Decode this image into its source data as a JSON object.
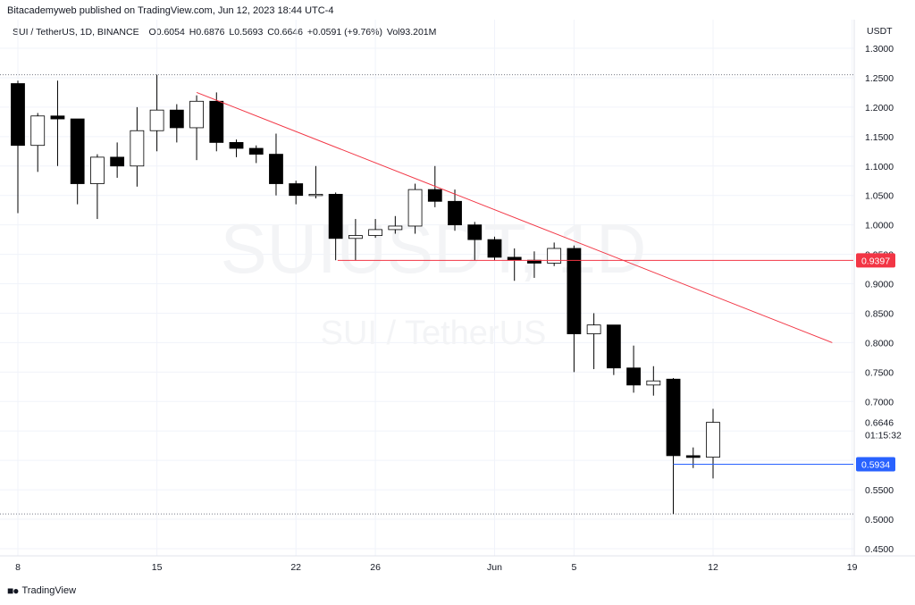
{
  "header": {
    "publish_line": "Bitacademyweb published on TradingView.com, Jun 12, 2023 18:44 UTC-4"
  },
  "legend": {
    "symbol_line": "SUI / TetherUS, 1D, BINANCE",
    "open_label": "O",
    "open": "0.6054",
    "high_label": "H",
    "high": "0.6876",
    "low_label": "L",
    "low": "0.5693",
    "close_label": "C",
    "close": "0.6646",
    "change": "+0.0591 (+9.76%)",
    "vol_label": "Vol",
    "vol": "93.201M"
  },
  "watermark": {
    "ticker": "SUIUSDT, 1D",
    "name": "SUI / TetherUS"
  },
  "footer": {
    "brand": "TradingView",
    "logo": "tv-logo-icon"
  },
  "colors": {
    "up": "#ffffff",
    "down": "#000000",
    "wick": "#000000",
    "resistance": "#f23645",
    "support_label": "#f23645",
    "current_line": "#2962ff",
    "current_label": "#2962ff",
    "grid": "#f0f3fa"
  },
  "chart_data": {
    "type": "candlestick",
    "currency": "USDT",
    "y_ticks": [
      0.45,
      0.5,
      0.55,
      0.6,
      0.65,
      0.7,
      0.75,
      0.8,
      0.85,
      0.9,
      0.95,
      1.0,
      1.05,
      1.1,
      1.15,
      1.2,
      1.25,
      1.3
    ],
    "y_tick_labels": [
      "0.4500",
      "0.5000",
      "0.5500",
      "",
      "",
      "0.7000",
      "0.7500",
      "0.8000",
      "0.8500",
      "0.9000",
      "0.9500",
      "1.0000",
      "1.0500",
      "1.1000",
      "1.1500",
      "1.2000",
      "1.2500",
      "1.3000"
    ],
    "ylim": [
      0.43,
      1.33
    ],
    "x_ticks": [
      {
        "day": 0,
        "label": "8"
      },
      {
        "day": 7,
        "label": "15"
      },
      {
        "day": 14,
        "label": "22"
      },
      {
        "day": 18,
        "label": "26"
      },
      {
        "day": 24,
        "label": "Jun"
      },
      {
        "day": 28,
        "label": "5"
      },
      {
        "day": 35,
        "label": "12"
      },
      {
        "day": 42,
        "label": "19"
      }
    ],
    "x_range_days": [
      -0.5,
      42.5
    ],
    "candles": [
      {
        "d": 0,
        "o": 1.24,
        "h": 1.245,
        "l": 1.02,
        "c": 1.135
      },
      {
        "d": 1,
        "o": 1.135,
        "h": 1.19,
        "l": 1.09,
        "c": 1.185
      },
      {
        "d": 2,
        "o": 1.185,
        "h": 1.245,
        "l": 1.1,
        "c": 1.18
      },
      {
        "d": 3,
        "o": 1.18,
        "h": 1.18,
        "l": 1.035,
        "c": 1.07
      },
      {
        "d": 4,
        "o": 1.07,
        "h": 1.12,
        "l": 1.01,
        "c": 1.115
      },
      {
        "d": 5,
        "o": 1.115,
        "h": 1.14,
        "l": 1.08,
        "c": 1.1
      },
      {
        "d": 6,
        "o": 1.1,
        "h": 1.2,
        "l": 1.065,
        "c": 1.16
      },
      {
        "d": 7,
        "o": 1.16,
        "h": 1.255,
        "l": 1.125,
        "c": 1.195
      },
      {
        "d": 8,
        "o": 1.195,
        "h": 1.205,
        "l": 1.14,
        "c": 1.165
      },
      {
        "d": 9,
        "o": 1.165,
        "h": 1.22,
        "l": 1.11,
        "c": 1.21
      },
      {
        "d": 10,
        "o": 1.21,
        "h": 1.225,
        "l": 1.125,
        "c": 1.14
      },
      {
        "d": 11,
        "o": 1.14,
        "h": 1.145,
        "l": 1.115,
        "c": 1.13
      },
      {
        "d": 12,
        "o": 1.13,
        "h": 1.135,
        "l": 1.105,
        "c": 1.12
      },
      {
        "d": 13,
        "o": 1.12,
        "h": 1.155,
        "l": 1.05,
        "c": 1.07
      },
      {
        "d": 14,
        "o": 1.07,
        "h": 1.075,
        "l": 1.035,
        "c": 1.05
      },
      {
        "d": 15,
        "o": 1.05,
        "h": 1.1,
        "l": 1.045,
        "c": 1.052
      },
      {
        "d": 16,
        "o": 1.052,
        "h": 1.055,
        "l": 0.94,
        "c": 0.977
      },
      {
        "d": 17,
        "o": 0.977,
        "h": 1.01,
        "l": 0.94,
        "c": 0.982
      },
      {
        "d": 18,
        "o": 0.982,
        "h": 1.01,
        "l": 0.978,
        "c": 0.992
      },
      {
        "d": 19,
        "o": 0.992,
        "h": 1.015,
        "l": 0.985,
        "c": 0.998
      },
      {
        "d": 20,
        "o": 0.998,
        "h": 1.07,
        "l": 0.985,
        "c": 1.06
      },
      {
        "d": 21,
        "o": 1.06,
        "h": 1.1,
        "l": 1.03,
        "c": 1.04
      },
      {
        "d": 22,
        "o": 1.04,
        "h": 1.06,
        "l": 0.99,
        "c": 1.0
      },
      {
        "d": 23,
        "o": 1.0,
        "h": 1.005,
        "l": 0.94,
        "c": 0.975
      },
      {
        "d": 24,
        "o": 0.975,
        "h": 0.98,
        "l": 0.94,
        "c": 0.945
      },
      {
        "d": 25,
        "o": 0.945,
        "h": 0.96,
        "l": 0.905,
        "c": 0.94
      },
      {
        "d": 26,
        "o": 0.94,
        "h": 0.955,
        "l": 0.91,
        "c": 0.935
      },
      {
        "d": 27,
        "o": 0.935,
        "h": 0.97,
        "l": 0.93,
        "c": 0.96
      },
      {
        "d": 28,
        "o": 0.96,
        "h": 0.965,
        "l": 0.75,
        "c": 0.815
      },
      {
        "d": 29,
        "o": 0.815,
        "h": 0.85,
        "l": 0.755,
        "c": 0.83
      },
      {
        "d": 30,
        "o": 0.83,
        "h": 0.83,
        "l": 0.745,
        "c": 0.757
      },
      {
        "d": 31,
        "o": 0.757,
        "h": 0.795,
        "l": 0.715,
        "c": 0.728
      },
      {
        "d": 32,
        "o": 0.728,
        "h": 0.76,
        "l": 0.71,
        "c": 0.735
      },
      {
        "d": 33,
        "o": 0.738,
        "h": 0.74,
        "l": 0.509,
        "c": 0.608
      },
      {
        "d": 34,
        "o": 0.608,
        "h": 0.622,
        "l": 0.587,
        "c": 0.605
      },
      {
        "d": 35,
        "o": 0.6054,
        "h": 0.6876,
        "l": 0.5693,
        "c": 0.6646
      }
    ],
    "trendline": {
      "from": {
        "day": 9,
        "price": 1.225
      },
      "to": {
        "day": 41,
        "price": 0.8
      }
    },
    "support_line": {
      "price": 0.9397,
      "label": "0.9397",
      "from_day": 17
    },
    "current_price": {
      "price": 0.5934,
      "label": "0.5934",
      "from_day": 33
    },
    "last_price_label": "0.6646",
    "countdown": "01:15:32",
    "dotted_levels": [
      1.255,
      0.509
    ]
  }
}
